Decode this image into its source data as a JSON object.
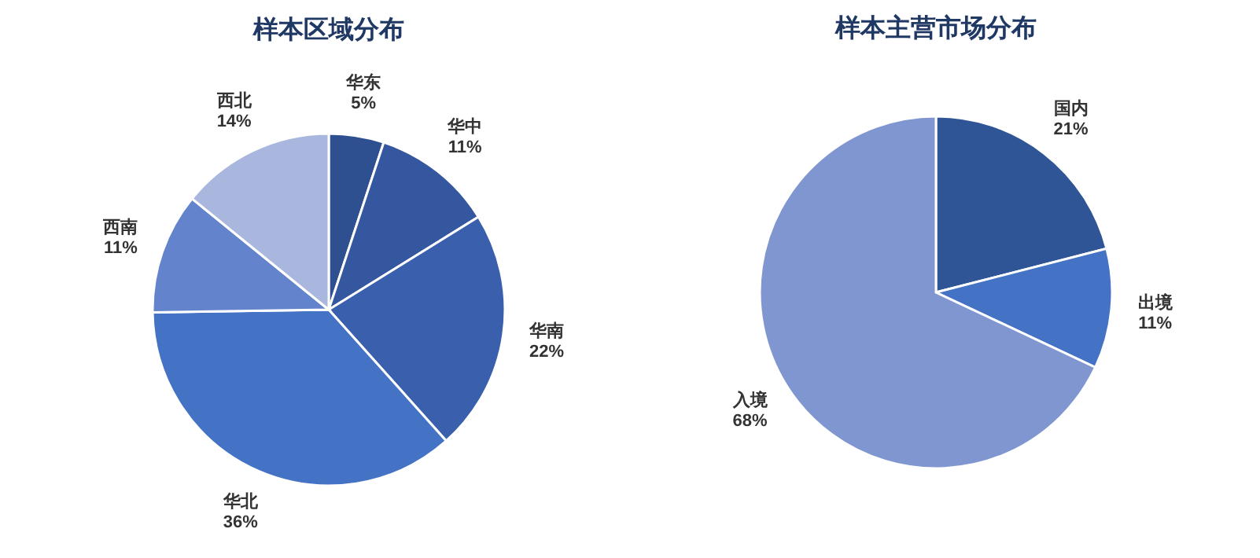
{
  "chart_data": [
    {
      "type": "pie",
      "title": "样本区域分布",
      "categories": [
        "华东",
        "华中",
        "华南",
        "华北",
        "西南",
        "西北"
      ],
      "values": [
        5,
        11,
        22,
        36,
        11,
        14
      ],
      "colors": [
        "#2e5090",
        "#3457a0",
        "#3a60ad",
        "#4472c4",
        "#6384cc",
        "#a9b7de"
      ],
      "value_labels": [
        "5%",
        "11%",
        "22%",
        "36%",
        "11%",
        "14%"
      ]
    },
    {
      "type": "pie",
      "title": "样本主营市场分布",
      "categories": [
        "国内",
        "出境",
        "入境"
      ],
      "values": [
        21,
        11,
        68
      ],
      "colors": [
        "#2f5597",
        "#4472c4",
        "#7f96d0"
      ],
      "value_labels": [
        "21%",
        "11%",
        "68%"
      ]
    }
  ]
}
